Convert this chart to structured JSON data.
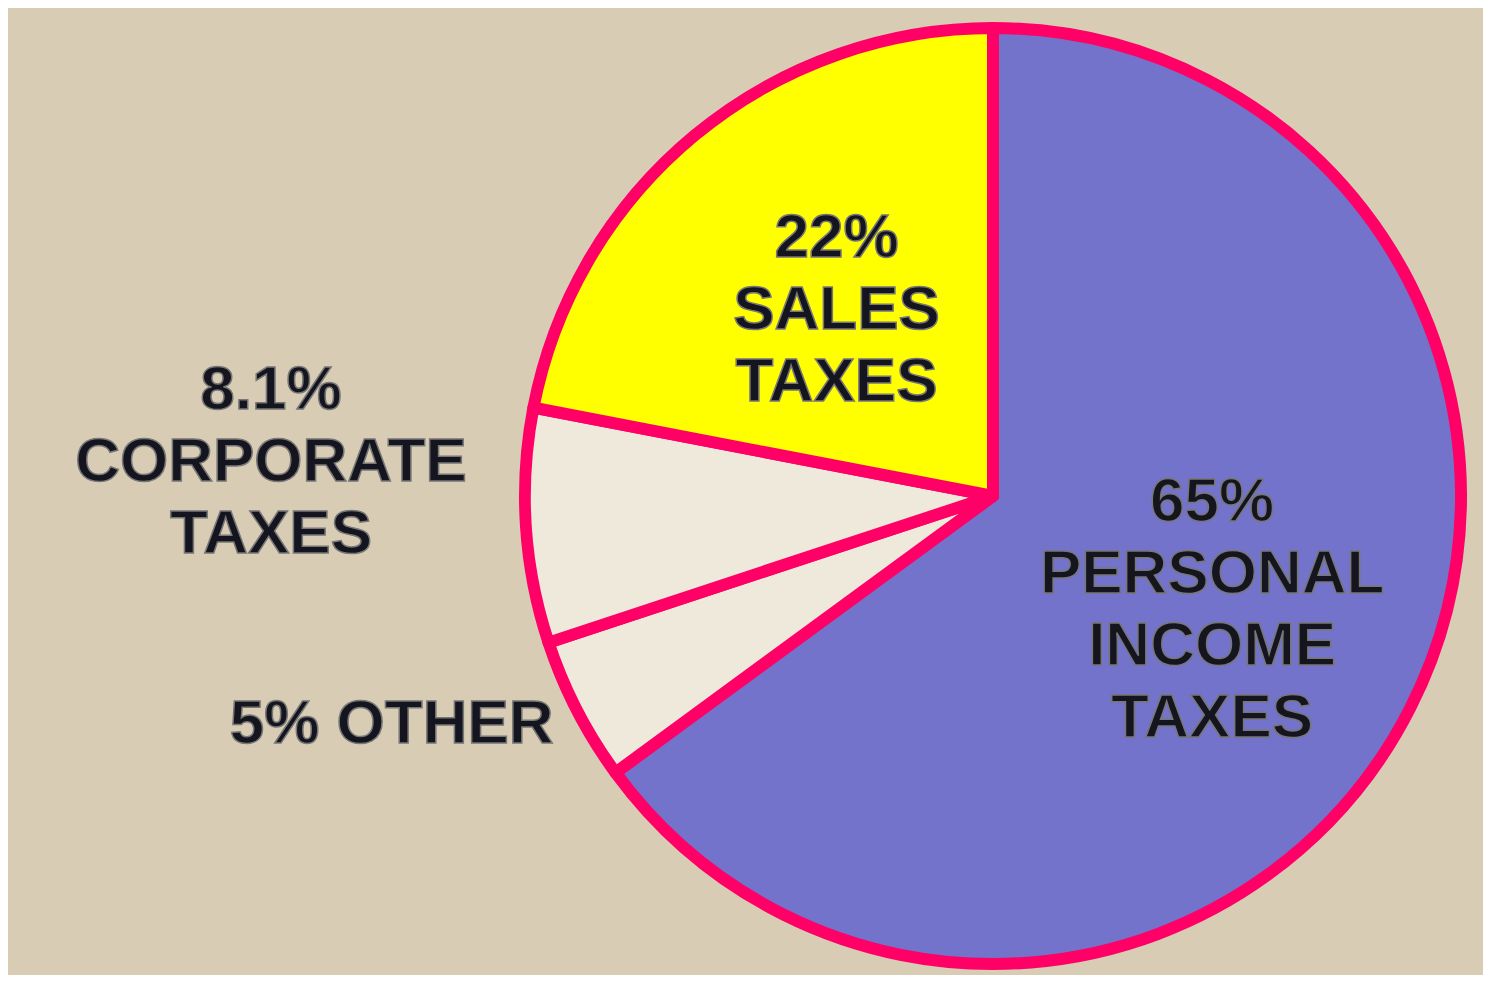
{
  "chart_data": {
    "type": "pie",
    "categories": [
      "PERSONAL INCOME TAXES",
      "OTHER",
      "CORPORATE TAXES",
      "SALES TAXES"
    ],
    "values": [
      65,
      5,
      8.1,
      22
    ],
    "value_labels": [
      "65%",
      "5%",
      "8.1%",
      "22%"
    ],
    "colors": [
      "#7373cc",
      "#efe9dc",
      "#efe9dc",
      "#ffff00"
    ]
  }
}
